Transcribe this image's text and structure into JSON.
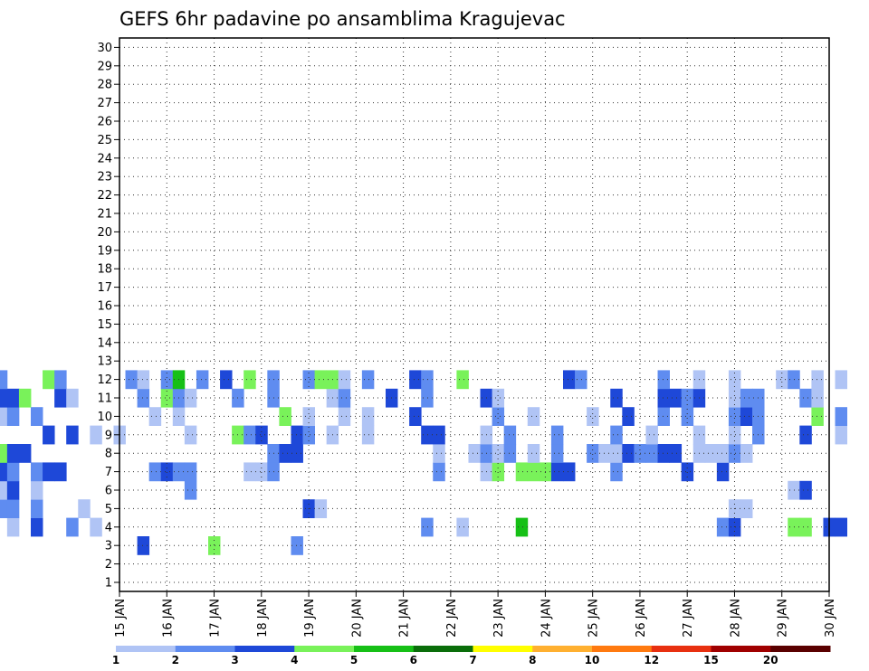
{
  "chart_data": {
    "type": "heatmap",
    "title": "GEFS 6hr padavine po ansamblima Kragujevac",
    "x_ticks": [
      "15 JAN",
      "16 JAN",
      "17 JAN",
      "18 JAN",
      "19 JAN",
      "20 JAN",
      "21 JAN",
      "22 JAN",
      "23 JAN",
      "24 JAN",
      "25 JAN",
      "26 JAN",
      "27 JAN",
      "28 JAN",
      "29 JAN",
      "30 JAN"
    ],
    "y_ticks": [
      "1",
      "2",
      "3",
      "4",
      "5",
      "6",
      "7",
      "8",
      "9",
      "10",
      "11",
      "12",
      "13",
      "14",
      "15",
      "16",
      "17",
      "18",
      "19",
      "20",
      "21",
      "22",
      "23",
      "24",
      "25",
      "26",
      "27",
      "28",
      "29",
      "30"
    ],
    "time_step_hours": 6,
    "grid": "dotted",
    "colorbar": {
      "labels": [
        "1",
        "2",
        "3",
        "4",
        "5",
        "6",
        "7",
        "8",
        "10",
        "12",
        "15",
        "20"
      ],
      "colors": [
        "#b0c4f5",
        "#5f8cf0",
        "#1e48d8",
        "#79f25a",
        "#16c016",
        "#0a6e0a",
        "#ffff00",
        "#ffb030",
        "#ff7a10",
        "#e83010",
        "#a00000",
        "#5a0000"
      ]
    },
    "cells": [
      [
        1,
        1.75,
        6
      ],
      [
        1,
        10.25,
        2
      ],
      [
        1,
        10.5,
        4
      ],
      [
        1,
        11,
        2
      ],
      [
        1,
        11.25,
        3
      ],
      [
        1,
        11.5,
        2
      ],
      [
        2,
        1.75,
        4
      ],
      [
        2,
        10.25,
        2
      ],
      [
        2,
        10.5,
        3
      ],
      [
        2,
        10.75,
        2
      ],
      [
        2,
        11,
        3
      ],
      [
        2,
        11.25,
        3
      ],
      [
        2,
        11.5,
        1
      ],
      [
        3,
        1.75,
        1
      ],
      [
        3,
        2,
        3
      ],
      [
        3,
        10.25,
        3
      ],
      [
        3,
        10.5,
        2
      ],
      [
        3,
        11.5,
        2
      ],
      [
        3,
        12,
        3
      ],
      [
        3,
        15.5,
        3
      ],
      [
        3,
        17,
        4
      ],
      [
        3,
        18.75,
        2
      ],
      [
        4,
        1.75,
        2
      ],
      [
        4,
        2,
        3
      ],
      [
        4,
        10.5,
        1
      ],
      [
        4,
        10.75,
        2
      ],
      [
        4,
        11.25,
        1
      ],
      [
        4,
        12.25,
        1
      ],
      [
        4,
        12.75,
        1
      ],
      [
        4,
        13.25,
        3
      ],
      [
        4,
        14,
        2
      ],
      [
        4,
        14.5,
        1
      ],
      [
        4,
        21.5,
        2
      ],
      [
        4,
        22.25,
        1
      ],
      [
        4,
        23.5,
        5
      ],
      [
        4,
        27.75,
        2
      ],
      [
        4,
        28,
        3
      ],
      [
        4,
        29.25,
        4
      ],
      [
        4,
        29.5,
        4
      ],
      [
        4,
        30,
        3
      ],
      [
        4,
        30.25,
        3
      ],
      [
        5,
        1.75,
        1
      ],
      [
        5,
        2,
        2
      ],
      [
        5,
        2.25,
        3
      ],
      [
        5,
        5.75,
        1
      ],
      [
        5,
        9.75,
        1
      ],
      [
        5,
        10,
        5
      ],
      [
        5,
        10.25,
        1
      ],
      [
        5,
        11,
        1
      ],
      [
        5,
        11.5,
        2
      ],
      [
        5,
        11.75,
        3
      ],
      [
        5,
        12.25,
        1
      ],
      [
        5,
        12.5,
        2
      ],
      [
        5,
        12.75,
        2
      ],
      [
        5,
        13.25,
        2
      ],
      [
        5,
        14.25,
        1
      ],
      [
        5,
        19,
        3
      ],
      [
        5,
        19.25,
        1
      ],
      [
        5,
        28,
        1
      ],
      [
        5,
        28.25,
        1
      ],
      [
        6,
        1.75,
        1
      ],
      [
        6,
        2,
        1
      ],
      [
        6,
        2.25,
        3
      ],
      [
        6,
        2.5,
        3
      ],
      [
        6,
        10,
        1
      ],
      [
        6,
        11.25,
        2
      ],
      [
        6,
        11.5,
        2
      ],
      [
        6,
        12,
        4
      ],
      [
        6,
        12.25,
        1
      ],
      [
        6,
        12.5,
        1
      ],
      [
        6,
        12.75,
        3
      ],
      [
        6,
        13.25,
        1
      ],
      [
        6,
        16.5,
        2
      ],
      [
        6,
        29.25,
        1
      ],
      [
        6,
        29.5,
        3
      ],
      [
        7,
        1.75,
        1
      ],
      [
        7,
        2,
        3
      ],
      [
        7,
        3.5,
        1
      ],
      [
        7,
        3.75,
        1
      ],
      [
        7,
        4,
        2
      ],
      [
        7,
        4.25,
        3
      ],
      [
        7,
        8,
        1
      ],
      [
        7,
        10,
        1
      ],
      [
        7,
        10.5,
        2
      ],
      [
        7,
        11.25,
        1
      ],
      [
        7,
        11.5,
        1
      ],
      [
        7,
        12.5,
        3
      ],
      [
        7,
        12.75,
        2
      ],
      [
        7,
        13.25,
        2
      ],
      [
        7,
        13.5,
        3
      ],
      [
        7,
        13.75,
        3
      ],
      [
        7,
        15.75,
        2
      ],
      [
        7,
        16,
        3
      ],
      [
        7,
        16.25,
        2
      ],
      [
        7,
        16.5,
        2
      ],
      [
        7,
        17.75,
        1
      ],
      [
        7,
        18,
        1
      ],
      [
        7,
        18.25,
        2
      ],
      [
        7,
        21.75,
        2
      ],
      [
        7,
        22.75,
        1
      ],
      [
        7,
        23,
        4
      ],
      [
        7,
        23.5,
        4
      ],
      [
        7,
        23.75,
        4
      ],
      [
        7,
        24,
        4
      ],
      [
        7,
        24.25,
        3
      ],
      [
        7,
        24.5,
        3
      ],
      [
        7,
        25.5,
        2
      ],
      [
        7,
        27,
        3
      ],
      [
        7,
        27.75,
        3
      ],
      [
        8,
        1.75,
        2
      ],
      [
        8,
        2,
        3
      ],
      [
        8,
        2.25,
        3
      ],
      [
        8,
        10.25,
        1
      ],
      [
        8,
        10.5,
        1
      ],
      [
        8,
        11.25,
        1
      ],
      [
        8,
        11.5,
        3
      ],
      [
        8,
        11.75,
        3
      ],
      [
        8,
        12.5,
        4
      ],
      [
        8,
        12.75,
        3
      ],
      [
        8,
        13,
        3
      ],
      [
        8,
        18.25,
        2
      ],
      [
        8,
        18.5,
        3
      ],
      [
        8,
        18.75,
        3
      ],
      [
        8,
        21.75,
        1
      ],
      [
        8,
        22.5,
        1
      ],
      [
        8,
        22.75,
        2
      ],
      [
        8,
        23,
        1
      ],
      [
        8,
        23.25,
        2
      ],
      [
        8,
        23.75,
        1
      ],
      [
        8,
        24.25,
        2
      ],
      [
        8,
        25,
        2
      ],
      [
        8,
        25.25,
        1
      ],
      [
        8,
        25.5,
        1
      ],
      [
        8,
        25.75,
        3
      ],
      [
        8,
        26,
        2
      ],
      [
        8,
        26.25,
        2
      ],
      [
        8,
        26.5,
        3
      ],
      [
        8,
        26.75,
        3
      ],
      [
        8,
        27.25,
        1
      ],
      [
        8,
        27.5,
        1
      ],
      [
        8,
        27.75,
        1
      ],
      [
        8,
        28,
        2
      ],
      [
        8,
        28.25,
        1
      ],
      [
        9,
        1.75,
        2
      ],
      [
        9,
        2,
        3
      ],
      [
        9,
        2.25,
        2
      ],
      [
        9,
        11,
        1
      ],
      [
        9,
        11.75,
        3
      ],
      [
        9,
        12,
        2
      ],
      [
        9,
        12.25,
        1
      ],
      [
        9,
        13.5,
        3
      ],
      [
        9,
        14,
        3
      ],
      [
        9,
        14.5,
        1
      ],
      [
        9,
        15,
        1
      ],
      [
        9,
        16.5,
        1
      ],
      [
        9,
        17.5,
        4
      ],
      [
        9,
        17.75,
        2
      ],
      [
        9,
        18,
        3
      ],
      [
        9,
        18.75,
        3
      ],
      [
        9,
        19,
        2
      ],
      [
        9,
        19.5,
        1
      ],
      [
        9,
        20.25,
        1
      ],
      [
        9,
        21.5,
        3
      ],
      [
        9,
        21.75,
        3
      ],
      [
        9,
        22.75,
        1
      ],
      [
        9,
        23.25,
        2
      ],
      [
        9,
        24.25,
        2
      ],
      [
        9,
        25.5,
        2
      ],
      [
        9,
        26.25,
        1
      ],
      [
        9,
        27.25,
        1
      ],
      [
        9,
        28,
        1
      ],
      [
        9,
        28.5,
        2
      ],
      [
        9,
        29.5,
        3
      ],
      [
        9,
        30.25,
        1
      ],
      [
        10,
        1.75,
        3
      ],
      [
        10,
        2,
        1
      ],
      [
        10,
        3.25,
        2
      ],
      [
        10,
        3.5,
        1
      ],
      [
        10,
        11.5,
        1
      ],
      [
        10,
        12,
        3
      ],
      [
        10,
        12.25,
        2
      ],
      [
        10,
        12.5,
        1
      ],
      [
        10,
        12.75,
        2
      ],
      [
        10,
        13.25,
        2
      ],
      [
        10,
        15.75,
        1
      ],
      [
        10,
        16.25,
        1
      ],
      [
        10,
        18.5,
        4
      ],
      [
        10,
        19,
        1
      ],
      [
        10,
        19.75,
        1
      ],
      [
        10,
        20.25,
        1
      ],
      [
        10,
        21.25,
        3
      ],
      [
        10,
        23,
        2
      ],
      [
        10,
        23.75,
        1
      ],
      [
        10,
        25,
        1
      ],
      [
        10,
        25.75,
        3
      ],
      [
        10,
        26.5,
        2
      ],
      [
        10,
        27,
        2
      ],
      [
        10,
        28,
        2
      ],
      [
        10,
        28.25,
        3
      ],
      [
        10,
        28.5,
        2
      ],
      [
        10,
        29.75,
        4
      ],
      [
        10,
        30.25,
        2
      ],
      [
        11,
        1.75,
        3
      ],
      [
        11,
        2,
        3
      ],
      [
        11,
        3.75,
        1
      ],
      [
        11,
        4.25,
        1
      ],
      [
        11,
        11.25,
        3
      ],
      [
        11,
        11.75,
        1
      ],
      [
        11,
        12,
        1
      ],
      [
        11,
        12.25,
        2
      ],
      [
        11,
        12.5,
        3
      ],
      [
        11,
        12.75,
        3
      ],
      [
        11,
        13,
        4
      ],
      [
        11,
        13.75,
        3
      ],
      [
        11,
        14,
        1
      ],
      [
        11,
        15.5,
        2
      ],
      [
        11,
        16,
        4
      ],
      [
        11,
        16.25,
        2
      ],
      [
        11,
        16.5,
        1
      ],
      [
        11,
        17.5,
        2
      ],
      [
        11,
        18.25,
        2
      ],
      [
        11,
        19.5,
        1
      ],
      [
        11,
        19.75,
        2
      ],
      [
        11,
        20.75,
        3
      ],
      [
        11,
        21.5,
        2
      ],
      [
        11,
        22.75,
        3
      ],
      [
        11,
        23,
        1
      ],
      [
        11,
        25.5,
        3
      ],
      [
        11,
        26.5,
        3
      ],
      [
        11,
        26.75,
        3
      ],
      [
        11,
        27,
        2
      ],
      [
        11,
        27.25,
        3
      ],
      [
        11,
        28,
        1
      ],
      [
        11,
        28.25,
        2
      ],
      [
        11,
        28.5,
        2
      ],
      [
        11,
        29.5,
        2
      ],
      [
        11,
        29.75,
        1
      ],
      [
        12,
        1.75,
        2
      ],
      [
        12,
        2,
        1
      ],
      [
        12,
        2.25,
        2
      ],
      [
        12,
        11.25,
        3
      ],
      [
        12,
        11.5,
        1
      ],
      [
        12,
        11.75,
        3
      ],
      [
        12,
        12,
        4
      ],
      [
        12,
        12.25,
        5
      ],
      [
        12,
        12.5,
        2
      ],
      [
        12,
        13.5,
        4
      ],
      [
        12,
        13.75,
        2
      ],
      [
        12,
        15.25,
        2
      ],
      [
        12,
        15.5,
        1
      ],
      [
        12,
        16,
        2
      ],
      [
        12,
        16.25,
        5
      ],
      [
        12,
        16.75,
        2
      ],
      [
        12,
        17.25,
        3
      ],
      [
        12,
        17.75,
        4
      ],
      [
        12,
        18.25,
        2
      ],
      [
        12,
        19,
        2
      ],
      [
        12,
        19.25,
        4
      ],
      [
        12,
        19.5,
        4
      ],
      [
        12,
        19.75,
        1
      ],
      [
        12,
        20.25,
        2
      ],
      [
        12,
        21.25,
        3
      ],
      [
        12,
        21.5,
        2
      ],
      [
        12,
        22.25,
        4
      ],
      [
        12,
        24.5,
        3
      ],
      [
        12,
        24.75,
        2
      ],
      [
        12,
        26.5,
        2
      ],
      [
        12,
        27.25,
        1
      ],
      [
        12,
        28,
        1
      ],
      [
        12,
        29,
        1
      ],
      [
        12,
        29.25,
        2
      ],
      [
        12,
        29.75,
        1
      ],
      [
        12,
        30.25,
        1
      ]
    ]
  }
}
